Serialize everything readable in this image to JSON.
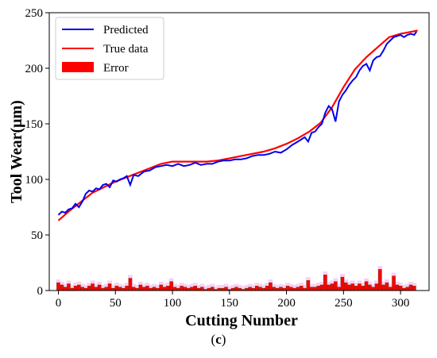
{
  "caption": {
    "open": "(",
    "letter": "c",
    "close": ")"
  },
  "chart_data": {
    "type": "line",
    "title": "",
    "xlabel": "Cutting Number",
    "ylabel": "Tool Wear(μm)",
    "xlim": [
      -8,
      325
    ],
    "ylim": [
      0,
      250
    ],
    "xticks": [
      0,
      50,
      100,
      150,
      200,
      250,
      300
    ],
    "yticks": [
      0,
      50,
      100,
      150,
      200,
      250
    ],
    "grid": false,
    "legend_position": "top-left",
    "colors": {
      "predicted": "#0000ee",
      "true": "#ff0000",
      "error": "#ff0000",
      "error_bar_edge": "#8b2500",
      "error_shadow": "#f8d0f4"
    },
    "series": [
      {
        "name": "Predicted",
        "kind": "line",
        "x": [
          0,
          3,
          6,
          9,
          12,
          15,
          18,
          21,
          24,
          27,
          30,
          33,
          36,
          39,
          42,
          45,
          48,
          51,
          54,
          57,
          60,
          63,
          66,
          70,
          75,
          80,
          85,
          90,
          95,
          100,
          105,
          110,
          115,
          120,
          125,
          130,
          135,
          140,
          145,
          150,
          155,
          160,
          165,
          170,
          175,
          180,
          185,
          190,
          195,
          200,
          205,
          210,
          213,
          216,
          219,
          222,
          225,
          228,
          231,
          234,
          237,
          240,
          243,
          246,
          249,
          252,
          255,
          258,
          261,
          264,
          267,
          270,
          273,
          276,
          279,
          282,
          285,
          288,
          291,
          294,
          297,
          300,
          303,
          306,
          309,
          312,
          314
        ],
        "y": [
          68,
          71,
          70,
          73,
          74,
          78,
          75,
          80,
          87,
          90,
          89,
          92,
          91,
          95,
          96,
          93,
          99,
          98,
          100,
          101,
          103,
          95,
          104,
          103,
          107,
          108,
          111,
          112,
          113,
          112,
          114,
          112,
          113,
          115,
          113,
          114,
          114,
          116,
          117,
          117,
          118,
          118,
          119,
          121,
          122,
          122,
          123,
          125,
          124,
          127,
          131,
          134,
          136,
          138,
          134,
          142,
          143,
          147,
          150,
          160,
          166,
          163,
          152,
          170,
          176,
          180,
          185,
          189,
          192,
          198,
          202,
          204,
          198,
          207,
          210,
          211,
          216,
          222,
          225,
          228,
          229,
          230,
          228,
          230,
          231,
          230,
          233
        ]
      },
      {
        "name": "True data",
        "kind": "line",
        "x": [
          0,
          10,
          20,
          30,
          40,
          50,
          60,
          70,
          80,
          90,
          100,
          110,
          120,
          130,
          140,
          150,
          160,
          170,
          180,
          190,
          200,
          210,
          220,
          230,
          240,
          250,
          260,
          270,
          280,
          290,
          300,
          315
        ],
        "y": [
          63,
          72,
          80,
          88,
          93,
          98,
          102,
          106,
          110,
          114,
          116,
          116,
          116,
          116,
          117,
          119,
          121,
          123,
          125,
          128,
          132,
          137,
          143,
          151,
          165,
          183,
          199,
          210,
          219,
          228,
          231,
          234
        ]
      },
      {
        "name": "Error",
        "kind": "bar",
        "x": [
          0,
          3,
          6,
          9,
          12,
          15,
          18,
          21,
          24,
          27,
          30,
          33,
          36,
          39,
          42,
          45,
          48,
          51,
          54,
          57,
          60,
          63,
          66,
          69,
          72,
          75,
          78,
          81,
          84,
          87,
          90,
          93,
          96,
          99,
          102,
          105,
          108,
          111,
          114,
          117,
          120,
          123,
          126,
          129,
          132,
          135,
          138,
          141,
          144,
          147,
          150,
          153,
          156,
          159,
          162,
          165,
          168,
          171,
          174,
          177,
          180,
          183,
          186,
          189,
          192,
          195,
          198,
          201,
          204,
          207,
          210,
          213,
          216,
          219,
          222,
          225,
          228,
          231,
          234,
          237,
          240,
          243,
          246,
          249,
          252,
          255,
          258,
          261,
          264,
          267,
          270,
          273,
          276,
          279,
          282,
          285,
          288,
          291,
          294,
          297,
          300,
          303,
          306,
          309,
          312
        ],
        "values": [
          7,
          5,
          3,
          6,
          2,
          4,
          5,
          3,
          2,
          4,
          6,
          3,
          5,
          2,
          3,
          6,
          2,
          4,
          3,
          2,
          4,
          11,
          3,
          2,
          5,
          3,
          4,
          2,
          3,
          2,
          5,
          3,
          4,
          8,
          3,
          2,
          4,
          3,
          2,
          3,
          4,
          2,
          3,
          1,
          2,
          3,
          1,
          2,
          2,
          3,
          1,
          2,
          3,
          2,
          1,
          2,
          3,
          2,
          4,
          3,
          2,
          4,
          7,
          3,
          2,
          3,
          2,
          4,
          3,
          2,
          3,
          4,
          2,
          9,
          3,
          3,
          4,
          5,
          14,
          5,
          6,
          8,
          3,
          12,
          7,
          5,
          6,
          4,
          6,
          4,
          8,
          5,
          3,
          6,
          19,
          5,
          7,
          3,
          13,
          5,
          4,
          2,
          3,
          5,
          4
        ]
      }
    ]
  }
}
